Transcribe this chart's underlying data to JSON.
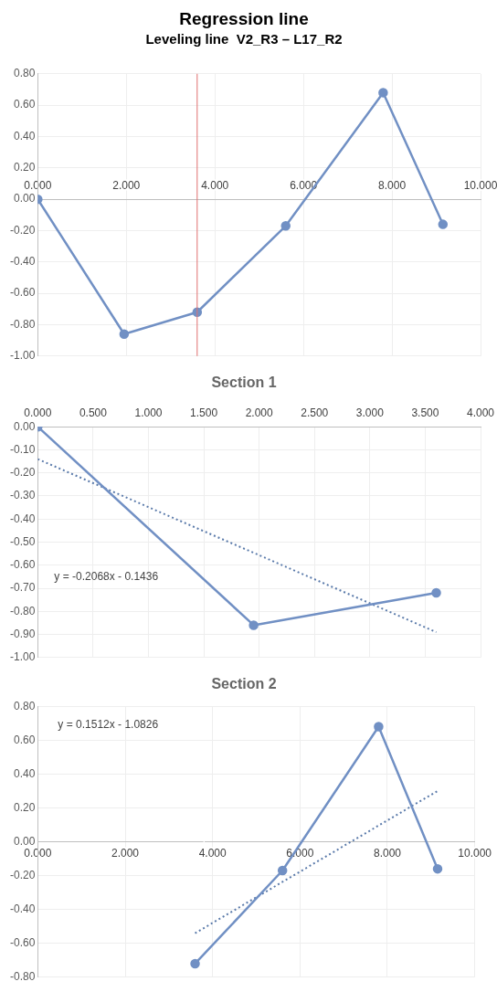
{
  "chart_data": [
    {
      "type": "line",
      "title": "Regression line",
      "subtitle": "Leveling line  V2_R3 – L17_R2",
      "marker": "circle",
      "line_style": "solid",
      "grid": true,
      "legend": false,
      "series": [
        {
          "color": "#7190c4",
          "x": [
            0,
            1.95,
            3.6,
            5.6,
            7.8,
            9.15
          ],
          "values": [
            0,
            -0.86,
            -0.72,
            -0.17,
            0.68,
            -0.16
          ]
        }
      ],
      "xlim": [
        0,
        10
      ],
      "xticks": [
        {
          "value": 0,
          "label": "0.000"
        },
        {
          "value": 2,
          "label": "2.000"
        },
        {
          "value": 4,
          "label": "4.000"
        },
        {
          "value": 6,
          "label": "6.000"
        },
        {
          "value": 8,
          "label": "8.000"
        },
        {
          "value": 10,
          "label": "10.000"
        }
      ],
      "ylim": [
        -1,
        0.8
      ],
      "yticks": [
        {
          "value": -1,
          "label": "-1.00"
        },
        {
          "value": -0.8,
          "label": "-0.80"
        },
        {
          "value": -0.6,
          "label": "-0.60"
        },
        {
          "value": -0.4,
          "label": "-0.40"
        },
        {
          "value": -0.2,
          "label": "-0.20"
        },
        {
          "value": 0,
          "label": "0.00"
        },
        {
          "value": 0.2,
          "label": "0.20"
        },
        {
          "value": 0.4,
          "label": "0.40"
        },
        {
          "value": 0.6,
          "label": "0.60"
        },
        {
          "value": 0.8,
          "label": "0.80"
        }
      ],
      "ref_lines": [
        {
          "axis": "x",
          "value": 3.6,
          "color": "#e07070"
        }
      ]
    },
    {
      "type": "line",
      "title": "Section 1",
      "marker": "circle",
      "line_style": "solid",
      "grid": true,
      "legend": false,
      "series": [
        {
          "color": "#7190c4",
          "x": [
            0,
            1.95,
            3.6
          ],
          "values": [
            0,
            -0.86,
            -0.72
          ]
        },
        {
          "type": "line",
          "color": "#5a7aaa",
          "marker": "none",
          "line_style": "dotted",
          "x": [
            0,
            3.6
          ],
          "values": [
            -0.14,
            -0.89
          ]
        }
      ],
      "xlim": [
        0,
        4
      ],
      "xticks": [
        {
          "value": 0,
          "label": "0.000"
        },
        {
          "value": 0.5,
          "label": "0.500"
        },
        {
          "value": 1,
          "label": "1.000"
        },
        {
          "value": 1.5,
          "label": "1.500"
        },
        {
          "value": 2,
          "label": "2.000"
        },
        {
          "value": 2.5,
          "label": "2.500"
        },
        {
          "value": 3,
          "label": "3.000"
        },
        {
          "value": 3.5,
          "label": "3.500"
        },
        {
          "value": 4,
          "label": "4.000"
        }
      ],
      "ylim": [
        -1,
        0
      ],
      "yticks": [
        {
          "value": -1,
          "label": "-1.00"
        },
        {
          "value": -0.9,
          "label": "-0.90"
        },
        {
          "value": -0.8,
          "label": "-0.80"
        },
        {
          "value": -0.7,
          "label": "-0.70"
        },
        {
          "value": -0.6,
          "label": "-0.60"
        },
        {
          "value": -0.5,
          "label": "-0.50"
        },
        {
          "value": -0.4,
          "label": "-0.40"
        },
        {
          "value": -0.3,
          "label": "-0.30"
        },
        {
          "value": -0.2,
          "label": "-0.20"
        },
        {
          "value": -0.1,
          "label": "-0.10"
        },
        {
          "value": 0,
          "label": "0.00"
        }
      ],
      "annotations": [
        "y = -0.2068x - 0.1436"
      ]
    },
    {
      "type": "line",
      "title": "Section 2",
      "marker": "circle",
      "line_style": "solid",
      "grid": true,
      "legend": false,
      "series": [
        {
          "color": "#7190c4",
          "x": [
            3.6,
            5.6,
            7.8,
            9.15
          ],
          "values": [
            -0.72,
            -0.17,
            0.68,
            -0.16
          ]
        },
        {
          "type": "line",
          "color": "#5a7aaa",
          "marker": "none",
          "line_style": "dotted",
          "x": [
            3.6,
            9.15
          ],
          "values": [
            -0.54,
            0.3
          ]
        }
      ],
      "xlim": [
        0,
        10
      ],
      "xticks": [
        {
          "value": 0,
          "label": "0.000"
        },
        {
          "value": 2,
          "label": "2.000"
        },
        {
          "value": 4,
          "label": "4.000"
        },
        {
          "value": 6,
          "label": "6.000"
        },
        {
          "value": 8,
          "label": "8.000"
        },
        {
          "value": 10,
          "label": "10.000"
        }
      ],
      "ylim": [
        -0.8,
        0.8
      ],
      "yticks": [
        {
          "value": -0.8,
          "label": "-0.80"
        },
        {
          "value": -0.6,
          "label": "-0.60"
        },
        {
          "value": -0.4,
          "label": "-0.40"
        },
        {
          "value": -0.2,
          "label": "-0.20"
        },
        {
          "value": 0,
          "label": "0.00"
        },
        {
          "value": 0.2,
          "label": "0.20"
        },
        {
          "value": 0.4,
          "label": "0.40"
        },
        {
          "value": 0.6,
          "label": "0.60"
        },
        {
          "value": 0.8,
          "label": "0.80"
        }
      ],
      "annotations": [
        "y = 0.1512x - 1.0826"
      ]
    }
  ]
}
